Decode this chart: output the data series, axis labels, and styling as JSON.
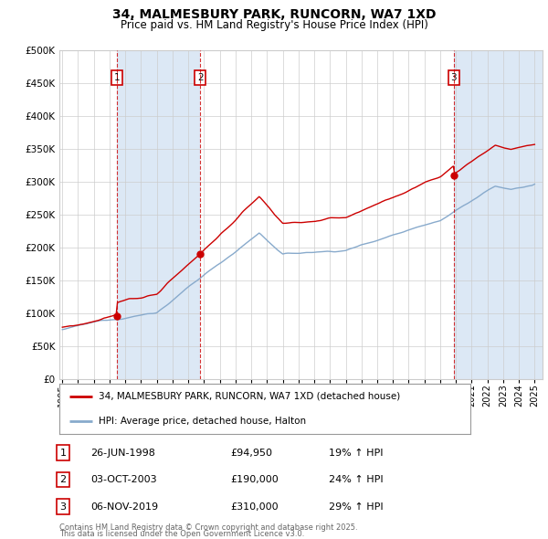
{
  "title": "34, MALMESBURY PARK, RUNCORN, WA7 1XD",
  "subtitle": "Price paid vs. HM Land Registry's House Price Index (HPI)",
  "bg_color": "#ffffff",
  "plot_bg_color": "#ffffff",
  "shade_color": "#dce8f5",
  "sale_dates_num": [
    1998.48,
    2003.75,
    2019.85
  ],
  "sale_prices": [
    94950,
    190000,
    310000
  ],
  "sale_labels": [
    "1",
    "2",
    "3"
  ],
  "sale_pct": [
    "19% ↑ HPI",
    "24% ↑ HPI",
    "29% ↑ HPI"
  ],
  "sale_dates_str": [
    "26-JUN-1998",
    "03-OCT-2003",
    "06-NOV-2019"
  ],
  "sale_prices_str": [
    "£94,950",
    "£190,000",
    "£310,000"
  ],
  "legend_red": "34, MALMESBURY PARK, RUNCORN, WA7 1XD (detached house)",
  "legend_blue": "HPI: Average price, detached house, Halton",
  "footer1": "Contains HM Land Registry data © Crown copyright and database right 2025.",
  "footer2": "This data is licensed under the Open Government Licence v3.0.",
  "red_color": "#cc0000",
  "blue_color": "#88aacc",
  "ylim": [
    0,
    500000
  ],
  "yticks": [
    0,
    50000,
    100000,
    150000,
    200000,
    250000,
    300000,
    350000,
    400000,
    450000,
    500000
  ],
  "xlim_start": 1994.8,
  "xlim_end": 2025.5,
  "xtick_years": [
    1995,
    1996,
    1997,
    1998,
    1999,
    2000,
    2001,
    2002,
    2003,
    2004,
    2005,
    2006,
    2007,
    2008,
    2009,
    2010,
    2011,
    2012,
    2013,
    2014,
    2015,
    2016,
    2017,
    2018,
    2019,
    2020,
    2021,
    2022,
    2023,
    2024,
    2025
  ]
}
